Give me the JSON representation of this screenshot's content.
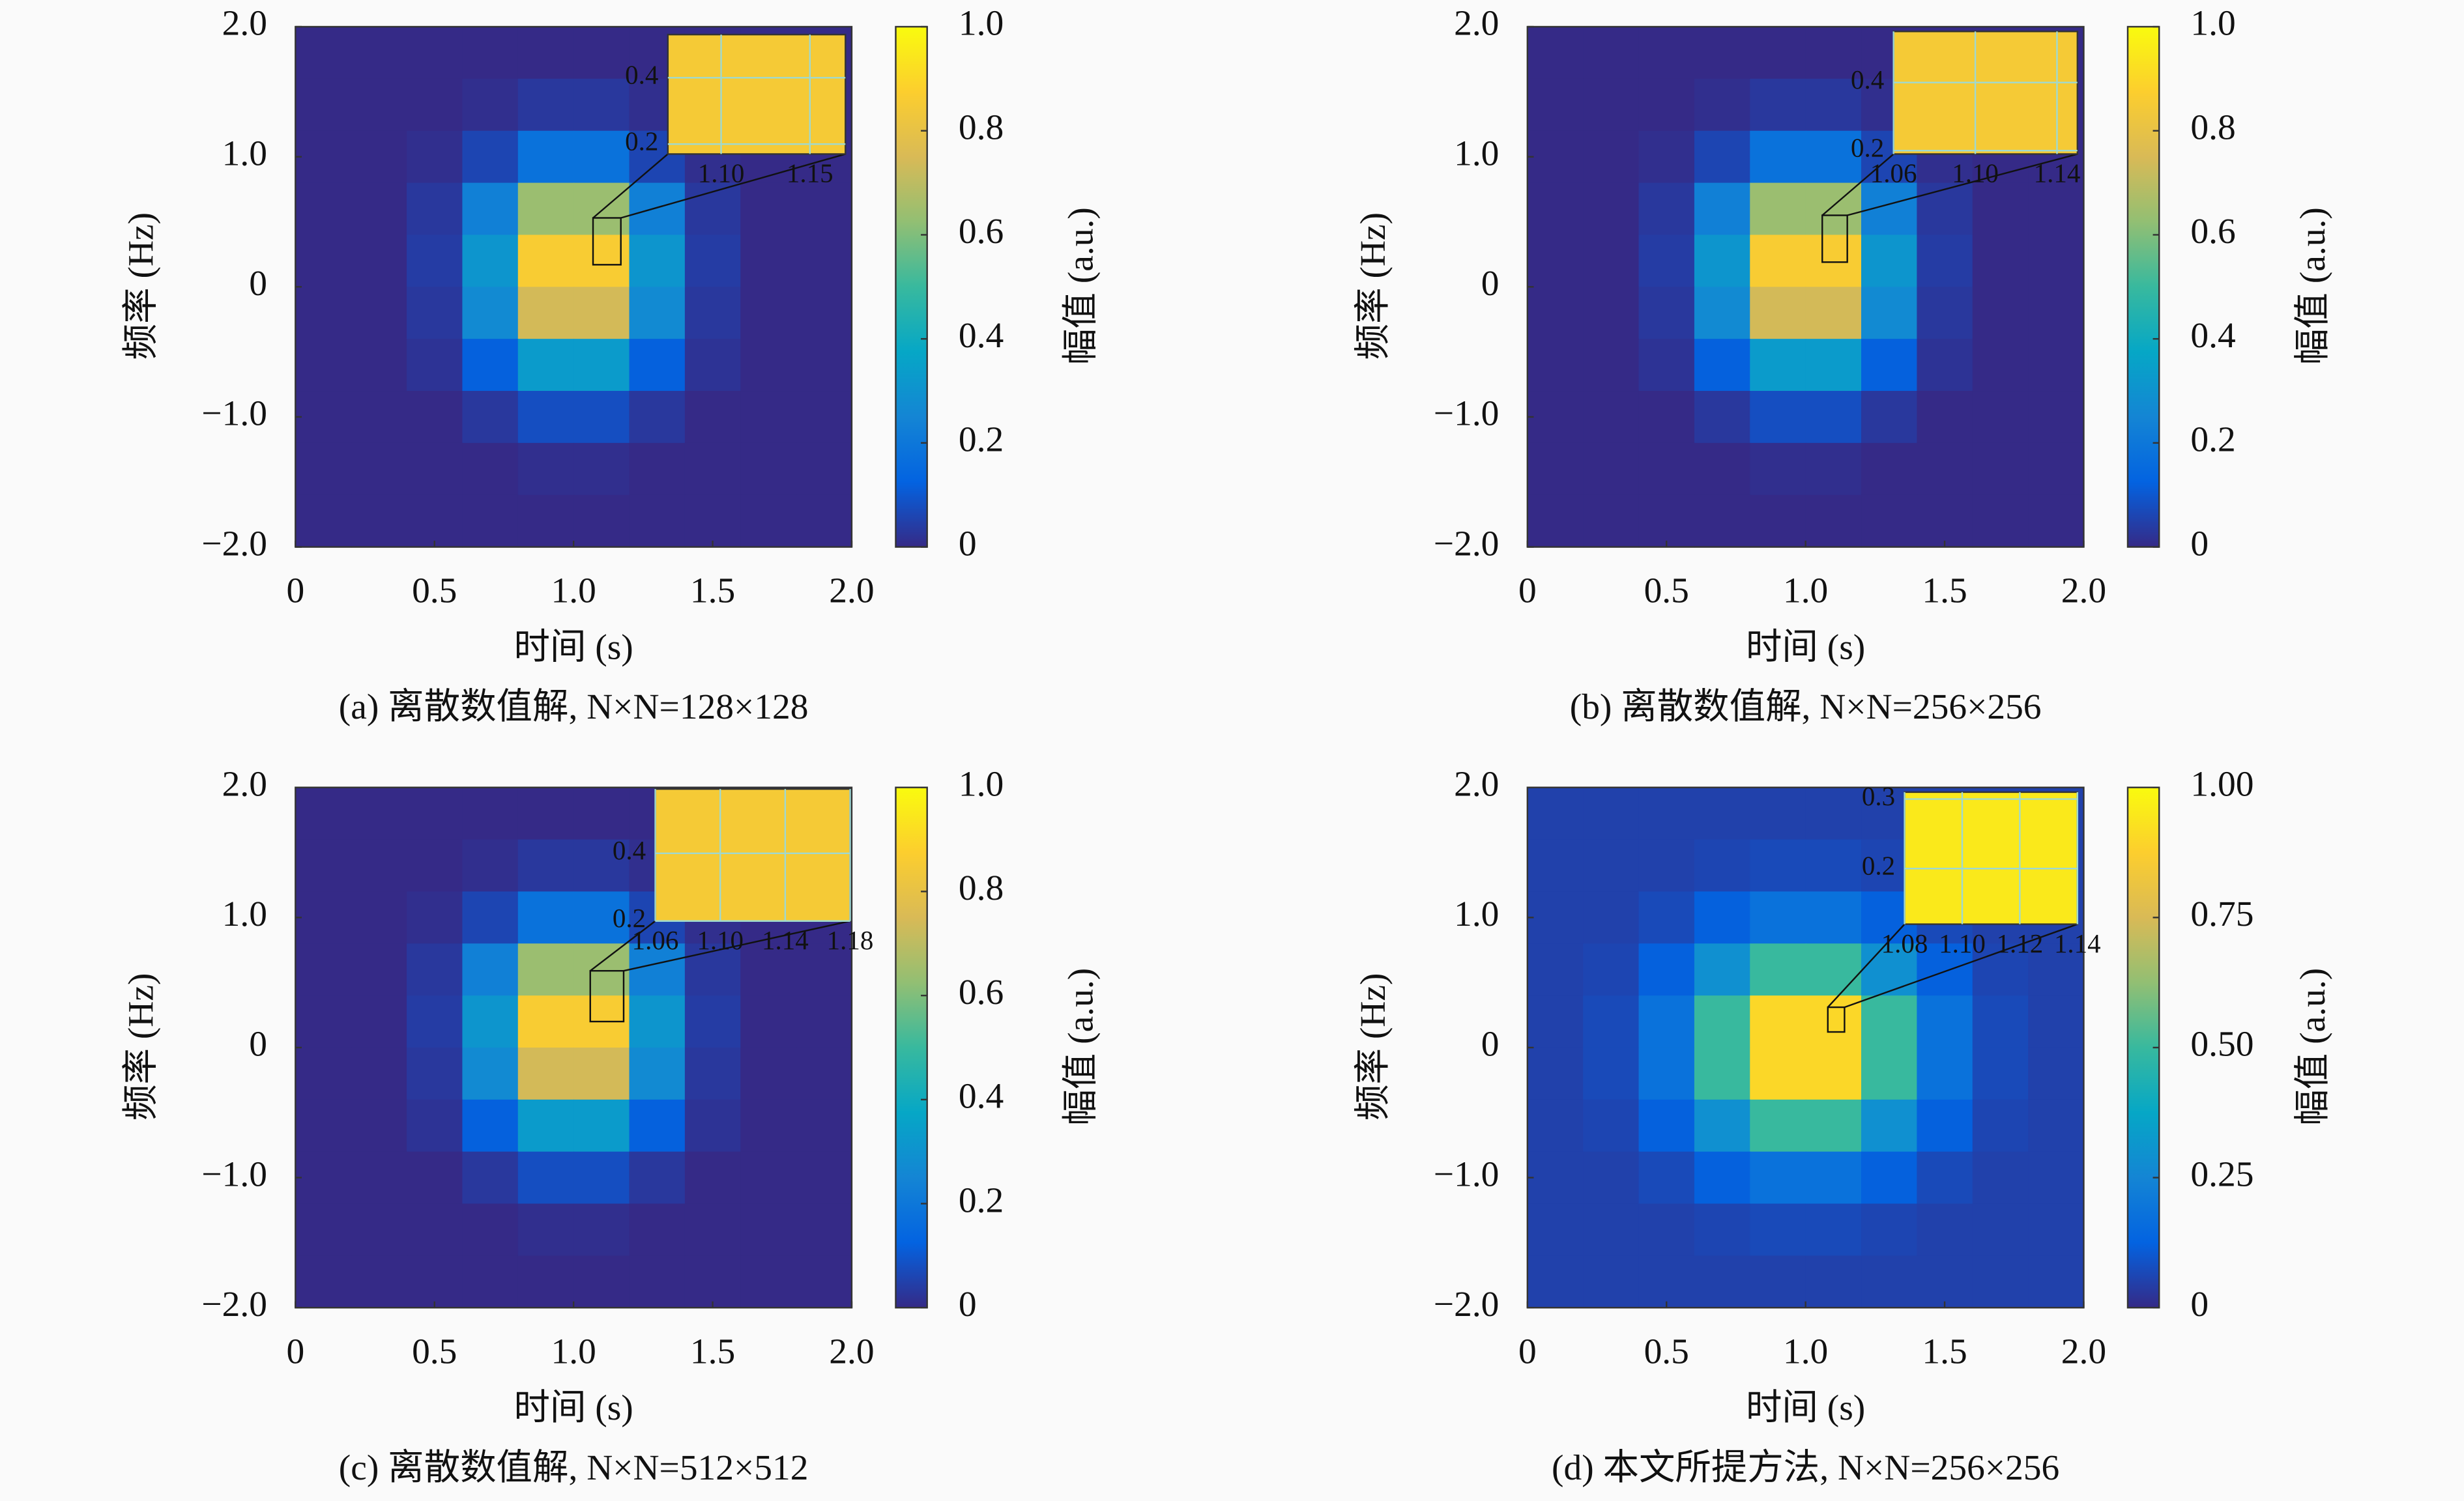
{
  "colormap": [
    "#352a87",
    "#0363e1",
    "#1485d4",
    "#06a7c6",
    "#38b99e",
    "#92bf73",
    "#d9ba56",
    "#fcce2e",
    "#f9fb0e"
  ],
  "chart_data": [
    {
      "type": "heatmap",
      "caption": "(a) 离散数值解, N×N=128×128",
      "x_label": "时间 (s)",
      "y_label": "频率 (Hz)",
      "colorbar_label": "幅值 (a.u.)",
      "xlim": [
        0,
        2
      ],
      "ylim": [
        -2,
        2
      ],
      "xticks": [
        0,
        0.5,
        {
          "value": 1,
          "label": "1.0"
        },
        1.5,
        {
          "value": 2,
          "label": "2.0"
        }
      ],
      "yticks": [
        {
          "value": -2,
          "label": "−2.0"
        },
        {
          "value": -1,
          "label": "−1.0"
        },
        0,
        {
          "value": 1,
          "label": "1.0"
        },
        {
          "value": 2,
          "label": "2.0"
        }
      ],
      "clim": [
        0,
        1
      ],
      "cticks": [
        0,
        0.2,
        0.4,
        0.6,
        0.8,
        {
          "value": 1,
          "label": "1.0"
        }
      ],
      "z": [
        [
          0,
          0,
          0,
          0,
          0,
          0,
          0,
          0,
          0,
          0
        ],
        [
          0,
          0,
          0,
          0.01,
          0.03,
          0.03,
          0.01,
          0,
          0,
          0
        ],
        [
          0,
          0,
          0.01,
          0.06,
          0.18,
          0.18,
          0.06,
          0.01,
          0,
          0
        ],
        [
          0,
          0,
          0.03,
          0.23,
          0.64,
          0.64,
          0.23,
          0.03,
          0,
          0
        ],
        [
          0,
          0,
          0.04,
          0.31,
          0.86,
          0.86,
          0.31,
          0.04,
          0,
          0
        ],
        [
          0,
          0,
          0.03,
          0.27,
          0.74,
          0.74,
          0.27,
          0.03,
          0,
          0
        ],
        [
          0,
          0,
          0.02,
          0.12,
          0.33,
          0.33,
          0.12,
          0.02,
          0,
          0
        ],
        [
          0,
          0,
          0,
          0.03,
          0.08,
          0.08,
          0.03,
          0,
          0,
          0
        ],
        [
          0,
          0,
          0,
          0,
          0.01,
          0.01,
          0,
          0,
          0,
          0
        ],
        [
          0,
          0,
          0,
          0,
          0,
          0,
          0,
          0,
          0,
          0
        ]
      ],
      "inset": {
        "xlim": [
          1.07,
          1.17
        ],
        "ylim": [
          0.17,
          0.53
        ],
        "xticks": [
          {
            "value": 1.1,
            "label": "1.10"
          },
          {
            "value": 1.15,
            "label": "1.15"
          }
        ],
        "yticks": [
          0.2,
          0.4
        ],
        "value": 0.85
      }
    },
    {
      "type": "heatmap",
      "caption": "(b) 离散数值解, N×N=256×256",
      "x_label": "时间 (s)",
      "y_label": "频率 (Hz)",
      "colorbar_label": "幅值 (a.u.)",
      "xlim": [
        0,
        2
      ],
      "ylim": [
        -2,
        2
      ],
      "xticks": [
        0,
        0.5,
        {
          "value": 1,
          "label": "1.0"
        },
        1.5,
        {
          "value": 2,
          "label": "2.0"
        }
      ],
      "yticks": [
        {
          "value": -2,
          "label": "−2.0"
        },
        {
          "value": -1,
          "label": "−1.0"
        },
        0,
        {
          "value": 1,
          "label": "1.0"
        },
        {
          "value": 2,
          "label": "2.0"
        }
      ],
      "clim": [
        0,
        1
      ],
      "cticks": [
        0,
        0.2,
        0.4,
        0.6,
        0.8,
        {
          "value": 1,
          "label": "1.0"
        }
      ],
      "z": [
        [
          0,
          0,
          0,
          0,
          0,
          0,
          0,
          0,
          0,
          0
        ],
        [
          0,
          0,
          0,
          0.01,
          0.03,
          0.03,
          0.01,
          0,
          0,
          0
        ],
        [
          0,
          0,
          0.01,
          0.06,
          0.18,
          0.18,
          0.06,
          0.01,
          0,
          0
        ],
        [
          0,
          0,
          0.03,
          0.23,
          0.64,
          0.64,
          0.23,
          0.03,
          0,
          0
        ],
        [
          0,
          0,
          0.04,
          0.31,
          0.86,
          0.86,
          0.31,
          0.04,
          0,
          0
        ],
        [
          0,
          0,
          0.03,
          0.27,
          0.74,
          0.74,
          0.27,
          0.03,
          0,
          0
        ],
        [
          0,
          0,
          0.02,
          0.12,
          0.33,
          0.33,
          0.12,
          0.02,
          0,
          0
        ],
        [
          0,
          0,
          0,
          0.03,
          0.08,
          0.08,
          0.03,
          0,
          0,
          0
        ],
        [
          0,
          0,
          0,
          0,
          0.01,
          0.01,
          0,
          0,
          0,
          0
        ],
        [
          0,
          0,
          0,
          0,
          0,
          0,
          0,
          0,
          0,
          0
        ]
      ],
      "inset": {
        "xlim": [
          1.06,
          1.15
        ],
        "ylim": [
          0.19,
          0.55
        ],
        "xticks": [
          1.06,
          {
            "value": 1.1,
            "label": "1.10"
          },
          1.14
        ],
        "yticks": [
          0.2,
          0.4
        ],
        "value": 0.85
      }
    },
    {
      "type": "heatmap",
      "caption": "(c) 离散数值解, N×N=512×512",
      "x_label": "时间 (s)",
      "y_label": "频率 (Hz)",
      "colorbar_label": "幅值 (a.u.)",
      "xlim": [
        0,
        2
      ],
      "ylim": [
        -2,
        2
      ],
      "xticks": [
        0,
        0.5,
        {
          "value": 1,
          "label": "1.0"
        },
        1.5,
        {
          "value": 2,
          "label": "2.0"
        }
      ],
      "yticks": [
        {
          "value": -2,
          "label": "−2.0"
        },
        {
          "value": -1,
          "label": "−1.0"
        },
        0,
        {
          "value": 1,
          "label": "1.0"
        },
        {
          "value": 2,
          "label": "2.0"
        }
      ],
      "clim": [
        0,
        1
      ],
      "cticks": [
        0,
        0.2,
        0.4,
        0.6,
        0.8,
        {
          "value": 1,
          "label": "1.0"
        }
      ],
      "z": [
        [
          0,
          0,
          0,
          0,
          0,
          0,
          0,
          0,
          0,
          0
        ],
        [
          0,
          0,
          0,
          0.01,
          0.03,
          0.03,
          0.01,
          0,
          0,
          0
        ],
        [
          0,
          0,
          0.01,
          0.06,
          0.18,
          0.18,
          0.06,
          0.01,
          0,
          0
        ],
        [
          0,
          0,
          0.03,
          0.23,
          0.64,
          0.64,
          0.23,
          0.03,
          0,
          0
        ],
        [
          0,
          0,
          0.04,
          0.31,
          0.86,
          0.86,
          0.31,
          0.04,
          0,
          0
        ],
        [
          0,
          0,
          0.03,
          0.27,
          0.74,
          0.74,
          0.27,
          0.03,
          0,
          0
        ],
        [
          0,
          0,
          0.02,
          0.12,
          0.33,
          0.33,
          0.12,
          0.02,
          0,
          0
        ],
        [
          0,
          0,
          0,
          0.03,
          0.08,
          0.08,
          0.03,
          0,
          0,
          0
        ],
        [
          0,
          0,
          0,
          0,
          0.01,
          0.01,
          0,
          0,
          0,
          0
        ],
        [
          0,
          0,
          0,
          0,
          0,
          0,
          0,
          0,
          0,
          0
        ]
      ],
      "inset": {
        "xlim": [
          1.06,
          1.18
        ],
        "ylim": [
          0.2,
          0.59
        ],
        "xticks": [
          1.06,
          {
            "value": 1.1,
            "label": "1.10"
          },
          1.14,
          1.18
        ],
        "yticks": [
          0.2,
          0.4
        ],
        "value": 0.85
      }
    },
    {
      "type": "heatmap",
      "caption": "(d) 本文所提方法, N×N=256×256",
      "x_label": "时间 (s)",
      "y_label": "频率 (Hz)",
      "colorbar_label": "幅值 (a.u.)",
      "xlim": [
        0,
        2
      ],
      "ylim": [
        -2,
        2
      ],
      "xticks": [
        0,
        0.5,
        {
          "value": 1,
          "label": "1.0"
        },
        1.5,
        {
          "value": 2,
          "label": "2.0"
        }
      ],
      "yticks": [
        {
          "value": -2,
          "label": "−2.0"
        },
        {
          "value": -1,
          "label": "−1.0"
        },
        0,
        {
          "value": 1,
          "label": "1.0"
        },
        {
          "value": 2,
          "label": "2.0"
        }
      ],
      "clim": [
        0,
        1
      ],
      "cticks": [
        0,
        0.25,
        {
          "value": 0.5,
          "label": "0.50"
        },
        0.75,
        {
          "value": 1,
          "label": "1.00"
        }
      ],
      "z": [
        [
          0.05,
          0.05,
          0.05,
          0.05,
          0.05,
          0.05,
          0.05,
          0.05,
          0.05,
          0.05
        ],
        [
          0.05,
          0.05,
          0.05,
          0.06,
          0.07,
          0.07,
          0.06,
          0.05,
          0.05,
          0.05
        ],
        [
          0.05,
          0.05,
          0.07,
          0.12,
          0.18,
          0.18,
          0.12,
          0.07,
          0.05,
          0.05
        ],
        [
          0.05,
          0.06,
          0.12,
          0.29,
          0.5,
          0.5,
          0.29,
          0.12,
          0.06,
          0.05
        ],
        [
          0.05,
          0.07,
          0.18,
          0.5,
          0.9,
          0.9,
          0.5,
          0.18,
          0.07,
          0.05
        ],
        [
          0.05,
          0.07,
          0.18,
          0.5,
          0.9,
          0.9,
          0.5,
          0.18,
          0.07,
          0.05
        ],
        [
          0.05,
          0.06,
          0.12,
          0.29,
          0.5,
          0.5,
          0.29,
          0.12,
          0.06,
          0.05
        ],
        [
          0.05,
          0.05,
          0.07,
          0.12,
          0.18,
          0.18,
          0.12,
          0.07,
          0.05,
          0.05
        ],
        [
          0.05,
          0.05,
          0.05,
          0.06,
          0.07,
          0.07,
          0.06,
          0.05,
          0.05,
          0.05
        ],
        [
          0.05,
          0.05,
          0.05,
          0.05,
          0.05,
          0.05,
          0.05,
          0.05,
          0.05,
          0.05
        ]
      ],
      "inset": {
        "xlim": [
          1.08,
          1.14
        ],
        "ylim": [
          0.12,
          0.31
        ],
        "xticks": [
          1.08,
          {
            "value": 1.1,
            "label": "1.10"
          },
          1.12,
          1.14
        ],
        "yticks": [
          0.2,
          0.3
        ],
        "value": 0.95
      }
    }
  ]
}
